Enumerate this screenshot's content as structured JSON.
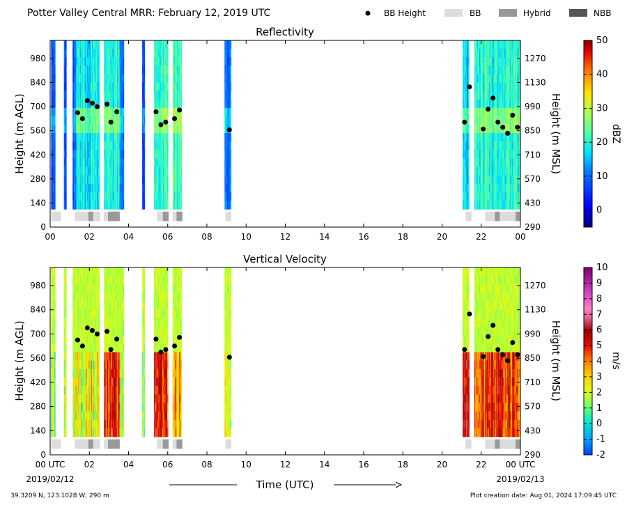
{
  "header": {
    "title": "Potter Valley Central MRR:  February 12, 2019 UTC",
    "legend": [
      {
        "label": "BB Height",
        "kind": "dot",
        "color": "#000000"
      },
      {
        "label": "BB",
        "kind": "box",
        "color": "#dcdcdc"
      },
      {
        "label": "Hybrid",
        "kind": "box",
        "color": "#999999"
      },
      {
        "label": "NBB",
        "kind": "box",
        "color": "#555555"
      }
    ]
  },
  "footer": {
    "location": "39.3209 N, 123.1028 W, 290 m",
    "xlabel": "Time (UTC)",
    "creation": "Plot creation date: Aug 01, 2024 17:09:45 UTC"
  },
  "chart_data": [
    {
      "type": "heatmap",
      "title": "Reflectivity",
      "ylabel": "Height (m AGL)",
      "ylabel_right": "Height (m MSL)",
      "xlim": [
        0,
        24
      ],
      "ylim": [
        0,
        1085
      ],
      "x_ticks": [
        "00",
        "02",
        "04",
        "06",
        "08",
        "10",
        "12",
        "14",
        "16",
        "18",
        "20",
        "22",
        "00"
      ],
      "y_ticks_left": [
        "0",
        "140",
        "280",
        "420",
        "560",
        "700",
        "840",
        "980"
      ],
      "y_ticks_right": [
        "290",
        "430",
        "570",
        "710",
        "850",
        "990",
        "1130",
        "1270"
      ],
      "colorbar": {
        "label": "dBZ",
        "min": -5,
        "max": 50,
        "ticks": [
          "0",
          "10",
          "20",
          "30",
          "40",
          "50"
        ]
      },
      "bb_height_points": [
        {
          "x": 1.4,
          "y": 665
        },
        {
          "x": 1.65,
          "y": 630
        },
        {
          "x": 1.9,
          "y": 735
        },
        {
          "x": 2.15,
          "y": 720
        },
        {
          "x": 2.4,
          "y": 700
        },
        {
          "x": 2.9,
          "y": 715
        },
        {
          "x": 3.1,
          "y": 610
        },
        {
          "x": 3.4,
          "y": 670
        },
        {
          "x": 5.4,
          "y": 670
        },
        {
          "x": 5.65,
          "y": 595
        },
        {
          "x": 5.9,
          "y": 610
        },
        {
          "x": 6.35,
          "y": 630
        },
        {
          "x": 6.6,
          "y": 680
        },
        {
          "x": 9.15,
          "y": 565
        },
        {
          "x": 21.15,
          "y": 610
        },
        {
          "x": 21.4,
          "y": 815
        },
        {
          "x": 22.1,
          "y": 570
        },
        {
          "x": 22.35,
          "y": 685
        },
        {
          "x": 22.6,
          "y": 750
        },
        {
          "x": 22.85,
          "y": 610
        },
        {
          "x": 23.1,
          "y": 580
        },
        {
          "x": 23.35,
          "y": 545
        },
        {
          "x": 23.6,
          "y": 650
        },
        {
          "x": 23.85,
          "y": 580
        }
      ]
    },
    {
      "type": "heatmap",
      "title": "Vertical Velocity",
      "ylabel": "Height (m AGL)",
      "ylabel_right": "Height (m MSL)",
      "xlim": [
        0,
        24
      ],
      "ylim": [
        0,
        1085
      ],
      "x_ticks": [
        "00 UTC",
        "02",
        "04",
        "06",
        "08",
        "10",
        "12",
        "14",
        "16",
        "18",
        "20",
        "22",
        "00 UTC"
      ],
      "x_date_left": "2019/02/12",
      "x_date_right": "2019/02/13",
      "y_ticks_left": [
        "0",
        "140",
        "280",
        "420",
        "560",
        "700",
        "840",
        "980"
      ],
      "y_ticks_right": [
        "290",
        "430",
        "570",
        "710",
        "850",
        "990",
        "1130",
        "1270"
      ],
      "colorbar": {
        "label": "m/s",
        "min": -2,
        "max": 10,
        "ticks": [
          "-2",
          "-1",
          "0",
          "1",
          "2",
          "3",
          "4",
          "5",
          "6",
          "7",
          "8",
          "9",
          "10"
        ]
      },
      "bb_height_points": [
        {
          "x": 1.4,
          "y": 665
        },
        {
          "x": 1.65,
          "y": 630
        },
        {
          "x": 1.9,
          "y": 735
        },
        {
          "x": 2.15,
          "y": 720
        },
        {
          "x": 2.4,
          "y": 700
        },
        {
          "x": 2.9,
          "y": 715
        },
        {
          "x": 3.1,
          "y": 610
        },
        {
          "x": 3.4,
          "y": 670
        },
        {
          "x": 5.4,
          "y": 670
        },
        {
          "x": 5.65,
          "y": 595
        },
        {
          "x": 5.9,
          "y": 610
        },
        {
          "x": 6.35,
          "y": 630
        },
        {
          "x": 6.6,
          "y": 680
        },
        {
          "x": 9.15,
          "y": 565
        },
        {
          "x": 21.15,
          "y": 610
        },
        {
          "x": 21.4,
          "y": 815
        },
        {
          "x": 22.1,
          "y": 570
        },
        {
          "x": 22.35,
          "y": 685
        },
        {
          "x": 22.6,
          "y": 750
        },
        {
          "x": 22.85,
          "y": 610
        },
        {
          "x": 23.1,
          "y": 580
        },
        {
          "x": 23.35,
          "y": 545
        },
        {
          "x": 23.6,
          "y": 650
        },
        {
          "x": 23.85,
          "y": 580
        }
      ]
    }
  ],
  "echo_segments": [
    {
      "start": 0.05,
      "end": 0.25,
      "z": 8,
      "w": 1.5
    },
    {
      "start": 0.7,
      "end": 0.8,
      "z": 6,
      "w": 1.5
    },
    {
      "start": 1.15,
      "end": 1.3,
      "z": 8,
      "w": 1.8
    },
    {
      "start": 1.3,
      "end": 2.5,
      "z": 18,
      "w": 2.4
    },
    {
      "start": 2.75,
      "end": 3.55,
      "z": 20,
      "w": 4.8
    },
    {
      "start": 3.55,
      "end": 3.75,
      "z": 10,
      "w": 1.5
    },
    {
      "start": 4.7,
      "end": 4.8,
      "z": 5,
      "w": 1.0
    },
    {
      "start": 5.3,
      "end": 6.0,
      "z": 22,
      "w": 5.0
    },
    {
      "start": 6.25,
      "end": 6.7,
      "z": 21,
      "w": 3.5
    },
    {
      "start": 8.9,
      "end": 9.2,
      "z": 10,
      "w": 1.8
    },
    {
      "start": 21.05,
      "end": 21.35,
      "z": 16,
      "w": 5.6
    },
    {
      "start": 21.65,
      "end": 24.0,
      "z": 20,
      "w": 4.5
    }
  ],
  "bb_flag_segments": [
    {
      "start": 0.05,
      "end": 0.55,
      "type": "BB"
    },
    {
      "start": 1.25,
      "end": 1.95,
      "type": "BB"
    },
    {
      "start": 1.95,
      "end": 2.2,
      "type": "Hybrid"
    },
    {
      "start": 2.2,
      "end": 2.55,
      "type": "BB"
    },
    {
      "start": 2.75,
      "end": 2.95,
      "type": "BB"
    },
    {
      "start": 2.95,
      "end": 3.55,
      "type": "Hybrid"
    },
    {
      "start": 5.45,
      "end": 5.75,
      "type": "BB"
    },
    {
      "start": 5.75,
      "end": 6.05,
      "type": "Hybrid"
    },
    {
      "start": 6.25,
      "end": 6.45,
      "type": "BB"
    },
    {
      "start": 6.45,
      "end": 6.75,
      "type": "Hybrid"
    },
    {
      "start": 8.95,
      "end": 9.25,
      "type": "BB"
    },
    {
      "start": 21.2,
      "end": 21.5,
      "type": "BB"
    },
    {
      "start": 22.2,
      "end": 22.7,
      "type": "BB"
    },
    {
      "start": 22.7,
      "end": 22.95,
      "type": "Hybrid"
    },
    {
      "start": 22.95,
      "end": 23.75,
      "type": "BB"
    },
    {
      "start": 23.75,
      "end": 24.0,
      "type": "Hybrid"
    }
  ]
}
